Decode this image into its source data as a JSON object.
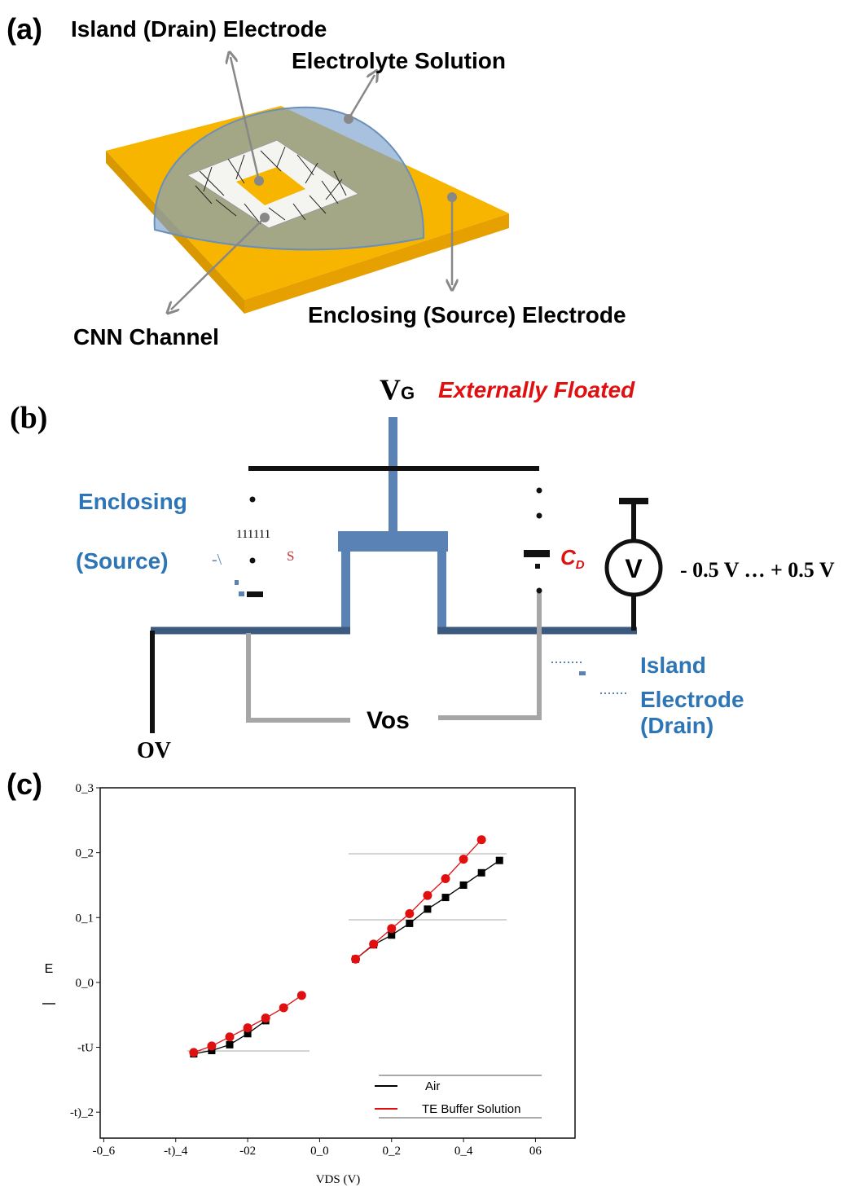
{
  "panel_a": {
    "label": "(a)",
    "island_electrode": "Island (Drain) Electrode",
    "electrolyte": "Electrolyte Solution",
    "enclosing_electrode": "Enclosing (Source) Electrode",
    "channel": "CNN Channel"
  },
  "panel_b": {
    "label": "(b)",
    "gate": {
      "main": "V",
      "sub": "G"
    },
    "floated": "Externally Floated",
    "enclosing": "Enclosing",
    "source": "(Source)",
    "ticks_text": "111111",
    "s_label": "S",
    "mark": "-\\",
    "capacitor": {
      "main": "C",
      "sub": "D"
    },
    "voltmeter": "V",
    "sweep": "- 0.5 V … + 0.5 V",
    "island": "Island",
    "electrode": "Electrode",
    "drain": "(Drain)",
    "vds": "Vos",
    "ground": "OV"
  },
  "panel_c": {
    "label": "(c)"
  },
  "chart_data": {
    "type": "line",
    "xlabel": "VDS (V)",
    "ylabel": "E",
    "xlim": [
      -0.61,
      0.71
    ],
    "ylim": [
      -0.24,
      0.3
    ],
    "xticks": [
      {
        "value": -0.6,
        "label": "-0_6"
      },
      {
        "value": -0.4,
        "label": "-t)_4"
      },
      {
        "value": -0.2,
        "label": "-02"
      },
      {
        "value": 0,
        "label": "0_0"
      },
      {
        "value": 0.2,
        "label": "0_2"
      },
      {
        "value": 0.4,
        "label": "0_4"
      },
      {
        "value": 0.6,
        "label": "06"
      }
    ],
    "yticks": [
      {
        "value": 0.3,
        "label": "0_3"
      },
      {
        "value": 0.2,
        "label": "0_2"
      },
      {
        "value": 0.1,
        "label": "0_1"
      },
      {
        "value": 0,
        "label": "0_0"
      },
      {
        "value": -0.1,
        "label": "-tU"
      },
      {
        "value": -0.2,
        "label": "-t)_2"
      }
    ],
    "legend": "lower right",
    "series": [
      {
        "name": "Air",
        "color": "#000000",
        "marker": "square",
        "x": [
          -0.35,
          -0.3,
          -0.25,
          -0.2,
          -0.15,
          0,
          0.1,
          0.15,
          0.2,
          0.25,
          0.3,
          0.35,
          0.4,
          0.45,
          0.5
        ],
        "values": [
          -0.11,
          -0.105,
          -0.096,
          -0.079,
          -0.059,
          null,
          0.036,
          0.058,
          0.073,
          0.091,
          0.113,
          0.131,
          0.15,
          0.169,
          0.188
        ]
      },
      {
        "name": "TE Buffer Solution",
        "color": "#e01010",
        "marker": "circle",
        "x": [
          -0.35,
          -0.3,
          -0.25,
          -0.2,
          -0.15,
          -0.1,
          -0.05,
          0,
          0.1,
          0.15,
          0.2,
          0.25,
          0.3,
          0.35,
          0.4,
          0.45
        ],
        "values": [
          -0.108,
          -0.098,
          -0.084,
          -0.07,
          -0.055,
          -0.039,
          -0.02,
          null,
          0.036,
          0.059,
          0.083,
          0.106,
          0.134,
          0.16,
          0.19,
          0.22
        ]
      }
    ]
  }
}
